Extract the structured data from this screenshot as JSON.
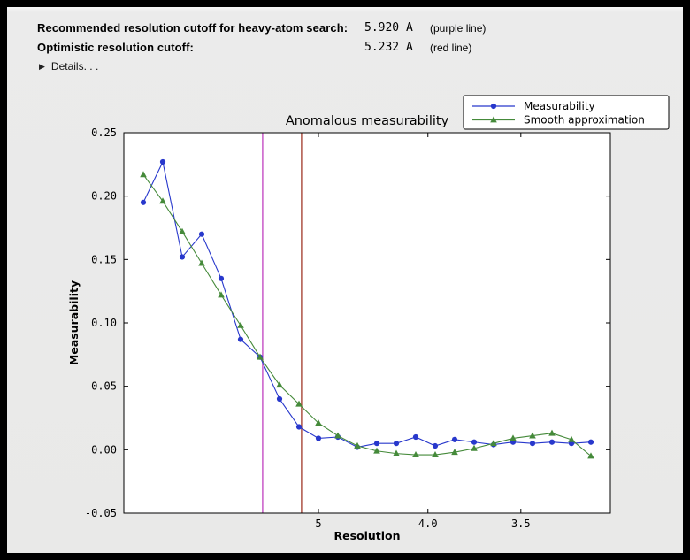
{
  "header": {
    "rows": [
      {
        "label": "Recommended resolution cutoff for heavy-atom search:",
        "value": "5.920 A",
        "note": "(purple line)"
      },
      {
        "label": "Optimistic resolution cutoff:",
        "value": "5.232 A",
        "note": "(red line)"
      }
    ],
    "details_label": "Details. . ."
  },
  "chart_data": {
    "type": "line",
    "title": "Anomalous measurability",
    "xlabel": "Resolution",
    "ylabel": "Measurability",
    "x_axis": {
      "unit": "1/d^2",
      "min": 0.0,
      "max": 0.1,
      "ticks": [
        {
          "label": "5",
          "value": 0.04
        },
        {
          "label": "4.0",
          "value": 0.0625
        },
        {
          "label": "3.5",
          "value": 0.0816
        }
      ]
    },
    "y_axis": {
      "min": -0.05,
      "max": 0.25,
      "ticks": [
        0.25,
        0.2,
        0.15,
        0.1,
        0.05,
        0.0,
        -0.05
      ]
    },
    "x": [
      0.004,
      0.008,
      0.012,
      0.016,
      0.02,
      0.024,
      0.028,
      0.032,
      0.036,
      0.04,
      0.044,
      0.048,
      0.052,
      0.056,
      0.06,
      0.064,
      0.068,
      0.072,
      0.076,
      0.08,
      0.084,
      0.088,
      0.092,
      0.096
    ],
    "series": [
      {
        "name": "Measurability",
        "color": "#2838cc",
        "marker": "circle",
        "values": [
          0.195,
          0.227,
          0.152,
          0.17,
          0.135,
          0.087,
          0.073,
          0.04,
          0.018,
          0.009,
          0.01,
          0.002,
          0.005,
          0.005,
          0.01,
          0.003,
          0.008,
          0.006,
          0.004,
          0.006,
          0.005,
          0.006,
          0.005,
          0.006
        ]
      },
      {
        "name": "Smooth approximation",
        "color": "#458a3a",
        "marker": "triangle",
        "values": [
          0.217,
          0.196,
          0.172,
          0.147,
          0.122,
          0.098,
          0.073,
          0.051,
          0.036,
          0.021,
          0.011,
          0.003,
          -0.001,
          -0.003,
          -0.004,
          -0.004,
          -0.002,
          0.001,
          0.005,
          0.009,
          0.011,
          0.013,
          0.008,
          -0.005
        ]
      }
    ],
    "vlines": [
      {
        "name": "purple-cutoff-line",
        "color": "#c040c0",
        "x": 0.02853,
        "resolution_label": "5.920 A"
      },
      {
        "name": "red-cutoff-line",
        "color": "#a03828",
        "x": 0.03653,
        "resolution_label": "5.232 A"
      }
    ],
    "legend": {
      "position": "upper right"
    }
  }
}
